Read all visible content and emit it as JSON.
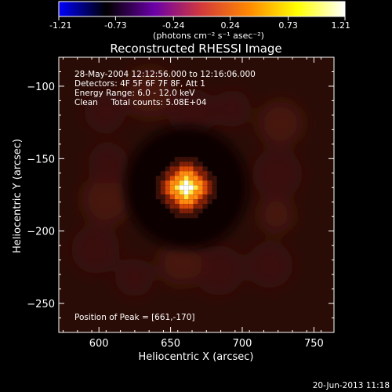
{
  "colorbar": {
    "tick_labels": [
      "-1.21",
      "-0.73",
      "-0.24",
      "0.24",
      "0.73",
      "1.21"
    ],
    "min": -1.21,
    "max": 1.21,
    "colormap": [
      "#0000ff",
      "#000000",
      "#6a00a8",
      "#d43a3a",
      "#ff8a00",
      "#ffff00",
      "#ffffff"
    ],
    "unit_label": "(photons cm⁻² s⁻¹ asec⁻²)"
  },
  "chart_data": {
    "type": "heatmap",
    "title": "Reconstructed RHESSI Image",
    "xlabel": "Heliocentric X (arcsec)",
    "ylabel": "Heliocentric Y (arcsec)",
    "xlim": [
      572,
      764
    ],
    "ylim": [
      -270,
      -80
    ],
    "xticks": [
      600,
      650,
      700,
      750
    ],
    "yticks": [
      -250,
      -200,
      -150,
      -100
    ],
    "annotations": [
      "28-May-2004 12:12:56.000 to 12:16:06.000",
      "Detectors: 4F 5F 6F 7F 8F, Att 1",
      "Energy Range: 6.0 - 12.0 keV",
      "Clean     Total counts: 5.08E+04"
    ],
    "peak_label": "Position of Peak = [661,-170]",
    "peak": {
      "x": 661,
      "y": -170,
      "value": 1.21
    },
    "background_color": "#2a0c06",
    "source_colors": [
      "#ffffff",
      "#ffe640",
      "#ff8c10",
      "#d84808",
      "#802008",
      "#3a1008"
    ]
  },
  "footer": {
    "timestamp": "20-Jun-2013 11:18"
  }
}
